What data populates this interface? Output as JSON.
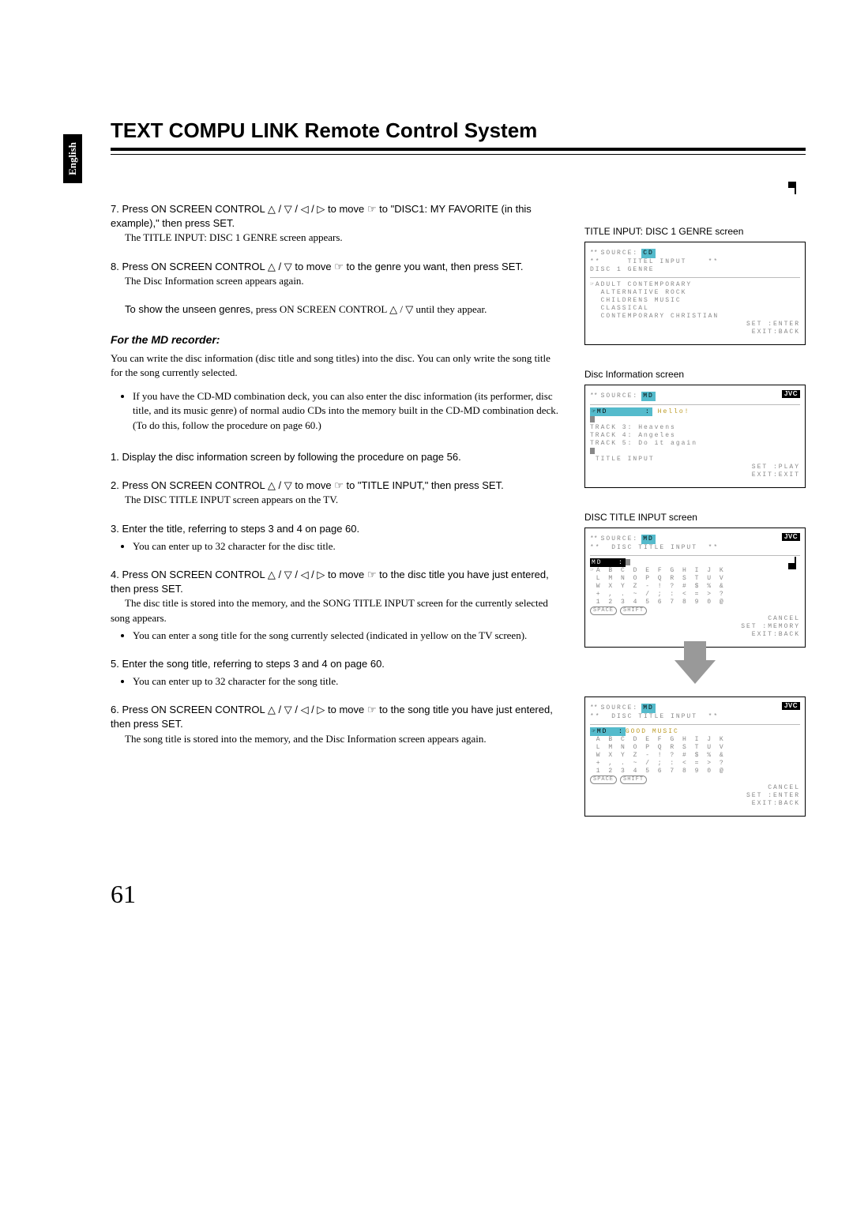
{
  "lang_tab": "English",
  "title": "TEXT COMPU LINK Remote Control System",
  "steps_a": [
    {
      "num": "7.",
      "lead": "Press ON SCREEN CONTROL △ / ▽ / ◁ / ▷ to move ☞ to \"DISC1: MY FAVORITE (in this example),\" then press SET.",
      "follow": "The TITLE INPUT: DISC 1 GENRE screen appears."
    },
    {
      "num": "8.",
      "lead": "Press ON SCREEN CONTROL △ / ▽ to move ☞ to the genre you want, then press SET.",
      "follow": "The Disc Information screen appears again.",
      "extra_lead": "To show the unseen genres,",
      "extra_follow": " press ON SCREEN CONTROL △ / ▽ until they appear."
    }
  ],
  "md_heading": "For the MD recorder:",
  "md_intro": "You can write the disc information (disc title and song titles) into the disc. You can only write the song title for the song currently selected.",
  "md_intro_bullet": "If you have the CD-MD combination deck, you can also enter the disc information (its performer, disc title, and its music genre) of normal audio CDs into the memory built in the CD-MD combination deck. (To do this, follow the procedure on page 60.)",
  "steps_b": [
    {
      "num": "1.",
      "lead": "Display the disc information screen by following the procedure on page 56."
    },
    {
      "num": "2.",
      "lead": "Press ON SCREEN CONTROL △ / ▽ to move ☞ to \"TITLE INPUT,\" then press SET.",
      "follow": "The DISC TITLE INPUT screen appears on the TV."
    },
    {
      "num": "3.",
      "lead": "Enter the title, referring to steps 3 and 4 on page 60.",
      "bullets": [
        "You can enter up to 32 character for the disc title."
      ]
    },
    {
      "num": "4.",
      "lead": "Press ON SCREEN CONTROL △ / ▽ / ◁ / ▷ to move ☞ to the disc title you have just entered, then press SET.",
      "follow": "The disc title is stored into the memory, and the SONG TITLE INPUT screen for the currently selected song appears.",
      "bullets": [
        "You can enter a song title for the song currently selected (indicated in yellow on the TV screen)."
      ]
    },
    {
      "num": "5.",
      "lead": "Enter the song title, referring to steps 3 and 4 on page 60.",
      "bullets": [
        "You can enter up to 32 character for the song title."
      ]
    },
    {
      "num": "6.",
      "lead": "Press ON SCREEN CONTROL △ / ▽ / ◁ / ▷ to move ☞ to the song title you have just entered, then press SET.",
      "follow": "The song title is stored into the memory, and the Disc Information screen appears again."
    }
  ],
  "screens": {
    "s1": {
      "caption": "TITLE INPUT: DISC 1 GENRE screen",
      "source_label": "SOURCE:",
      "source_value": "CD",
      "line2a": "TITEL INPUT",
      "line2b": "DISC 1 GENRE",
      "genres": [
        "☞ADULT CONTEMPORARY",
        "  ALTERNATIVE ROCK",
        "  CHILDRENS MUSIC",
        "  CLASSICAL",
        "  CONTEMPORARY CHRISTIAN"
      ],
      "footer": [
        "SET :ENTER",
        "EXIT:BACK"
      ]
    },
    "s2": {
      "caption": "Disc Information screen",
      "source_label": "SOURCE:",
      "source_value": "MD",
      "md_label": "☞MD       :",
      "md_value": "Hello!",
      "tracks": [
        "TRACK 3: Heavens",
        "TRACK 4: Angeles",
        "TRACK 5: Do it again"
      ],
      "title_input": "TITLE INPUT",
      "footer": [
        "SET :PLAY",
        "EXIT:EXIT"
      ]
    },
    "s3": {
      "caption": "DISC TITLE INPUT screen",
      "source_label": "SOURCE:",
      "source_value": "MD",
      "sub": "DISC TITLE INPUT",
      "md_label": "MD   :",
      "grid": [
        "☞A B C D E F G H I J K",
        " L M N O P Q R S T U V",
        " W X Y Z - ! ? # $ % &",
        " + , . ~ / ; : < = > ?",
        " 1 2 3 4 5 6 7 8 9 0 @"
      ],
      "footer": [
        "CANCEL",
        "SET :MEMORY",
        "EXIT:BACK"
      ]
    },
    "s4": {
      "source_label": "SOURCE:",
      "source_value": "MD",
      "sub": "DISC TITLE INPUT",
      "md_label": "☞MD  :",
      "md_value": "GOOD MUSIC",
      "grid": [
        " A B C D E F G H I J K",
        " L M N O P Q R S T U V",
        " W X Y Z - ! ? # $ % &",
        " + , . ~ / ; : < = > ?",
        " 1 2 3 4 5 6 7 8 9 0 @"
      ],
      "footer": [
        "CANCEL",
        "SET :ENTER",
        "EXIT:BACK"
      ]
    }
  },
  "page_number": "61"
}
